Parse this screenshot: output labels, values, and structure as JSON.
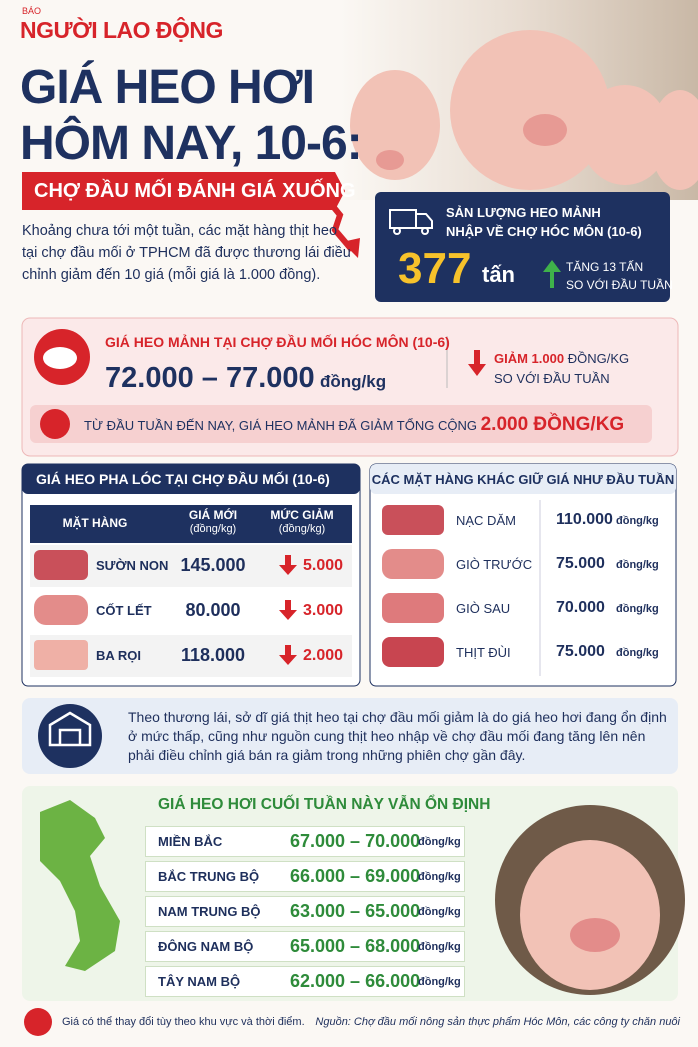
{
  "brand": {
    "kicker": "BÁO",
    "name": "NGƯỜI LAO ĐỘNG"
  },
  "header": {
    "title_lines": [
      "GIÁ HEO HƠI",
      "HÔM NAY, 10-6:"
    ],
    "subtitle": "CHỢ ĐẦU MỐI ĐÁNH GIÁ XUỐNG"
  },
  "intro": "Khoảng chưa tới một tuần, các mặt hàng thịt heo tại chợ đầu mối ở TPHCM đã được thương lái điều chỉnh giảm đến 10 giá (mỗi giá là 1.000 đồng).",
  "volume": {
    "label_lines": [
      "SẢN LƯỢNG HEO MẢNH",
      "NHẬP VỀ CHỢ HÓC MÔN (10-6)"
    ],
    "value": "377",
    "unit": "tấn",
    "change": "TĂNG 13 TẤN",
    "change_note": "SO VỚI ĐẦU TUẦN"
  },
  "price": {
    "label": "GIÁ HEO MẢNH TẠI CHỢ ĐẦU MỐI HÓC MÔN (10-6)",
    "range": "72.000 – 77.000",
    "unit": "đồng/kg",
    "change": "GIẢM 1.000",
    "change_unit": "ĐỒNG/KG",
    "change_note": "SO VỚI ĐẦU TUẦN"
  },
  "summary": {
    "text": "TỪ ĐẦU TUẦN ĐẾN NAY, GIÁ HEO MẢNH ĐÃ GIẢM TỔNG CỘNG",
    "highlight": "2.000 ĐỒNG/KG"
  },
  "cuts": {
    "title": "GIÁ HEO PHA LÓC TẠI CHỢ ĐẦU MỐI (10-6)",
    "headers": [
      [
        "MẶT HÀNG"
      ],
      [
        "GIÁ MỚI",
        "(đồng/kg)"
      ],
      [
        "MỨC GIẢM",
        "(đồng/kg)"
      ]
    ],
    "rows": [
      [
        "SƯỜN NON",
        "145.000",
        "5.000"
      ],
      [
        "CỐT LẾT",
        "80.000",
        "3.000"
      ],
      [
        "BA RỌI",
        "118.000",
        "2.000"
      ]
    ]
  },
  "others": {
    "title": "CÁC MẶT HÀNG KHÁC GIỮ GIÁ NHƯ ĐẦU TUẦN",
    "unit": "đồng/kg",
    "rows": [
      [
        "NẠC DĂM",
        "110.000"
      ],
      [
        "GIÒ TRƯỚC",
        "75.000"
      ],
      [
        "GIÒ SAU",
        "70.000"
      ],
      [
        "THỊT ĐÙI",
        "75.000"
      ]
    ]
  },
  "note": "Theo thương lái, sở dĩ giá thịt heo tại chợ đầu mối giảm là do giá heo hơi đang ổn định ở mức thấp, cũng như nguồn cung thịt heo nhập về chợ đầu mối đang tăng lên nên phải điều chỉnh giá bán ra giảm trong những phiên chợ gần đây.",
  "regions": {
    "title": "GIÁ HEO HƠI CUỐI TUẦN NÀY VẪN ỔN ĐỊNH",
    "unit": "đồng/kg",
    "rows": [
      [
        "MIỀN BẮC",
        "67.000 – 70.000"
      ],
      [
        "BẮC TRUNG BỘ",
        "66.000 – 69.000"
      ],
      [
        "NAM TRUNG BỘ",
        "63.000 – 65.000"
      ],
      [
        "ĐÔNG NAM BỘ",
        "65.000 – 68.000"
      ],
      [
        "TÂY NAM BỘ",
        "62.000 – 66.000"
      ]
    ]
  },
  "footer": {
    "note": "Giá có thể thay đổi tùy theo khu vực và thời điểm.",
    "source": "Nguồn: Chợ đầu mối nông sản thực phẩm Hóc Môn, các công ty chăn nuôi"
  }
}
